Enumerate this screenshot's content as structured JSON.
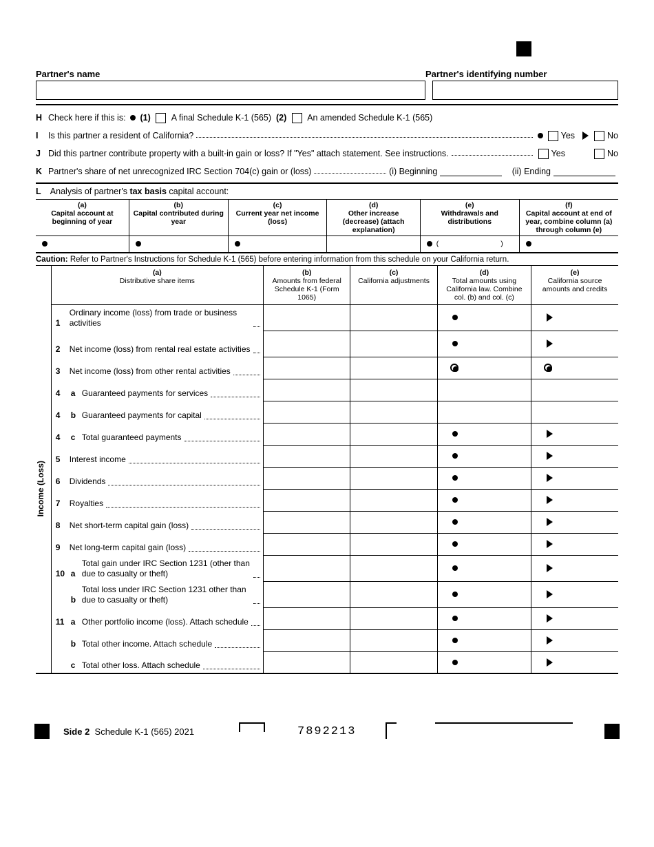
{
  "header": {
    "partner_name_label": "Partner's name",
    "partner_id_label": "Partner's identifying number"
  },
  "lines": {
    "H": {
      "text": "Check here if this is:",
      "opt1_num": "(1)",
      "opt1": "A final Schedule K-1 (565)",
      "opt2_num": "(2)",
      "opt2": "An amended Schedule K-1 (565)"
    },
    "I": {
      "text": "Is this partner a resident of California?",
      "yes": "Yes",
      "no": "No"
    },
    "J": {
      "text": "Did this partner contribute property with a built-in gain or loss? If \"Yes\" attach statement. See instructions.",
      "yes": "Yes",
      "no": "No"
    },
    "K": {
      "text": "Partner's share of net unrecognized IRC Section 704(c) gain or (loss)",
      "beg": "(i) Beginning",
      "end": "(ii) Ending"
    },
    "L": {
      "prefix": "Analysis of partner's ",
      "bold": "tax basis",
      "suffix": " capital account:"
    }
  },
  "tax_basis_cols": {
    "a": {
      "h": "(a)",
      "t": "Capital account at beginning of year"
    },
    "b": {
      "h": "(b)",
      "t": "Capital contributed during year"
    },
    "c": {
      "h": "(c)",
      "t": "Current year net income (loss)"
    },
    "d": {
      "h": "(d)",
      "t": "Other increase (decrease) (attach explanation)"
    },
    "e": {
      "h": "(e)",
      "t": "Withdrawals and distributions"
    },
    "f": {
      "h": "(f)",
      "t": "Capital account at end of year, combine column (a) through column (e)"
    }
  },
  "caution": {
    "b": "Caution:",
    "t": " Refer to Partner's Instructions for Schedule K-1 (565) before entering information from this schedule on your California return."
  },
  "main_cols": {
    "a": {
      "h": "(a)",
      "t": "Distributive share items"
    },
    "b": {
      "h": "(b)",
      "t": "Amounts from federal Schedule K-1 (Form 1065)"
    },
    "c": {
      "h": "(c)",
      "t": "California adjustments"
    },
    "d": {
      "h": "(d)",
      "t": "Total amounts using California law. Combine col. (b) and col. (c)"
    },
    "e": {
      "h": "(e)",
      "t": "California source amounts and credits"
    }
  },
  "side_label": "Income (Loss)",
  "rows": [
    {
      "n": "1",
      "t": "Ordinary income (loss) from trade or business activities",
      "two": true,
      "d": "bullet",
      "e": "tri"
    },
    {
      "n": "2",
      "t": "Net income (loss) from rental real estate activities",
      "two": true,
      "d": "bullet",
      "e": "tri"
    },
    {
      "n": "3",
      "t": "Net income (loss) from other rental activities",
      "d": "circ",
      "e": "circ"
    },
    {
      "n": "4",
      "s": "a",
      "t": "Guaranteed payments for services"
    },
    {
      "n": "4",
      "s": "b",
      "t": "Guaranteed payments for capital"
    },
    {
      "n": "4",
      "s": "c",
      "t": "Total guaranteed payments",
      "d": "bullet",
      "e": "tri"
    },
    {
      "n": "5",
      "t": "Interest income",
      "d": "bullet",
      "e": "tri"
    },
    {
      "n": "6",
      "t": "Dividends",
      "d": "bullet",
      "e": "tri"
    },
    {
      "n": "7",
      "t": "Royalties",
      "d": "bullet",
      "e": "tri"
    },
    {
      "n": "8",
      "t": "Net short-term capital gain (loss)",
      "d": "bullet",
      "e": "tri"
    },
    {
      "n": "9",
      "t": "Net long-term capital gain (loss)",
      "d": "bullet",
      "e": "tri"
    },
    {
      "n": "10",
      "s": "a",
      "t": "Total gain under IRC Section 1231 (other than due to casualty or theft)",
      "two": true,
      "d": "bullet",
      "e": "tri"
    },
    {
      "n": "",
      "s": "b",
      "t": "Total loss under IRC Section 1231 other than due to casualty or theft)",
      "two": true,
      "d": "bullet",
      "e": "tri"
    },
    {
      "n": "11",
      "s": "a",
      "t": "Other portfolio income (loss). Attach schedule",
      "d": "bullet",
      "e": "tri"
    },
    {
      "n": "",
      "s": "b",
      "t": "Total other income. Attach schedule",
      "d": "bullet",
      "e": "tri"
    },
    {
      "n": "",
      "s": "c",
      "t": "Total other loss. Attach schedule",
      "d": "bullet",
      "e": "tri",
      "last": true
    }
  ],
  "footer": {
    "side": "Side 2",
    "title": "Schedule K-1 (565)  2021",
    "num": "7892213"
  }
}
